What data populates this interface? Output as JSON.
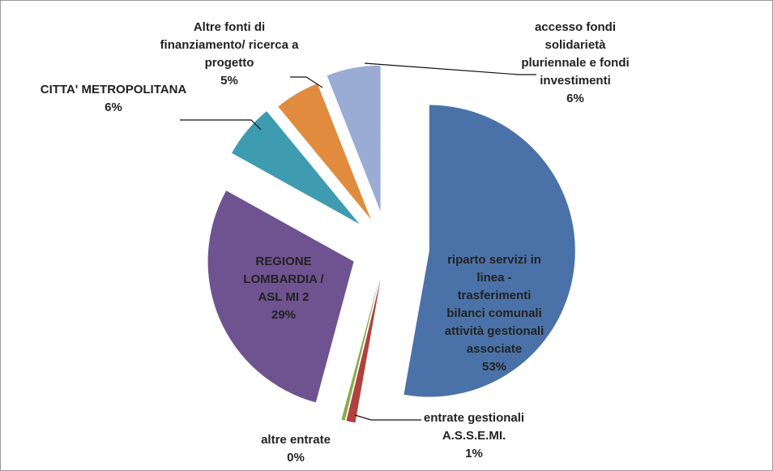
{
  "chart_data": {
    "type": "pie",
    "categories": [
      "riparto servizi in linea - trasferimenti bilanci comunali attività gestionali associate",
      "entrate gestionali A.S.S.E.MI.",
      "altre entrate",
      "REGIONE LOMBARDIA / ASL MI 2",
      "CITTA' METROPOLITANA",
      "Altre fonti di finanziamento/ ricerca a progetto",
      "accesso fondi solidarietà pluriennale  e fondi investimenti"
    ],
    "values": [
      53,
      1,
      0.4,
      29,
      6,
      5,
      6
    ],
    "value_labels": [
      "53%",
      "1%",
      "0%",
      "29%",
      "6%",
      "5%",
      "6%"
    ],
    "colors": [
      "#4a72a8",
      "#b0413e",
      "#8aab4a",
      "#6e5390",
      "#3e9bb0",
      "#e08b3e",
      "#9aabd4"
    ]
  }
}
